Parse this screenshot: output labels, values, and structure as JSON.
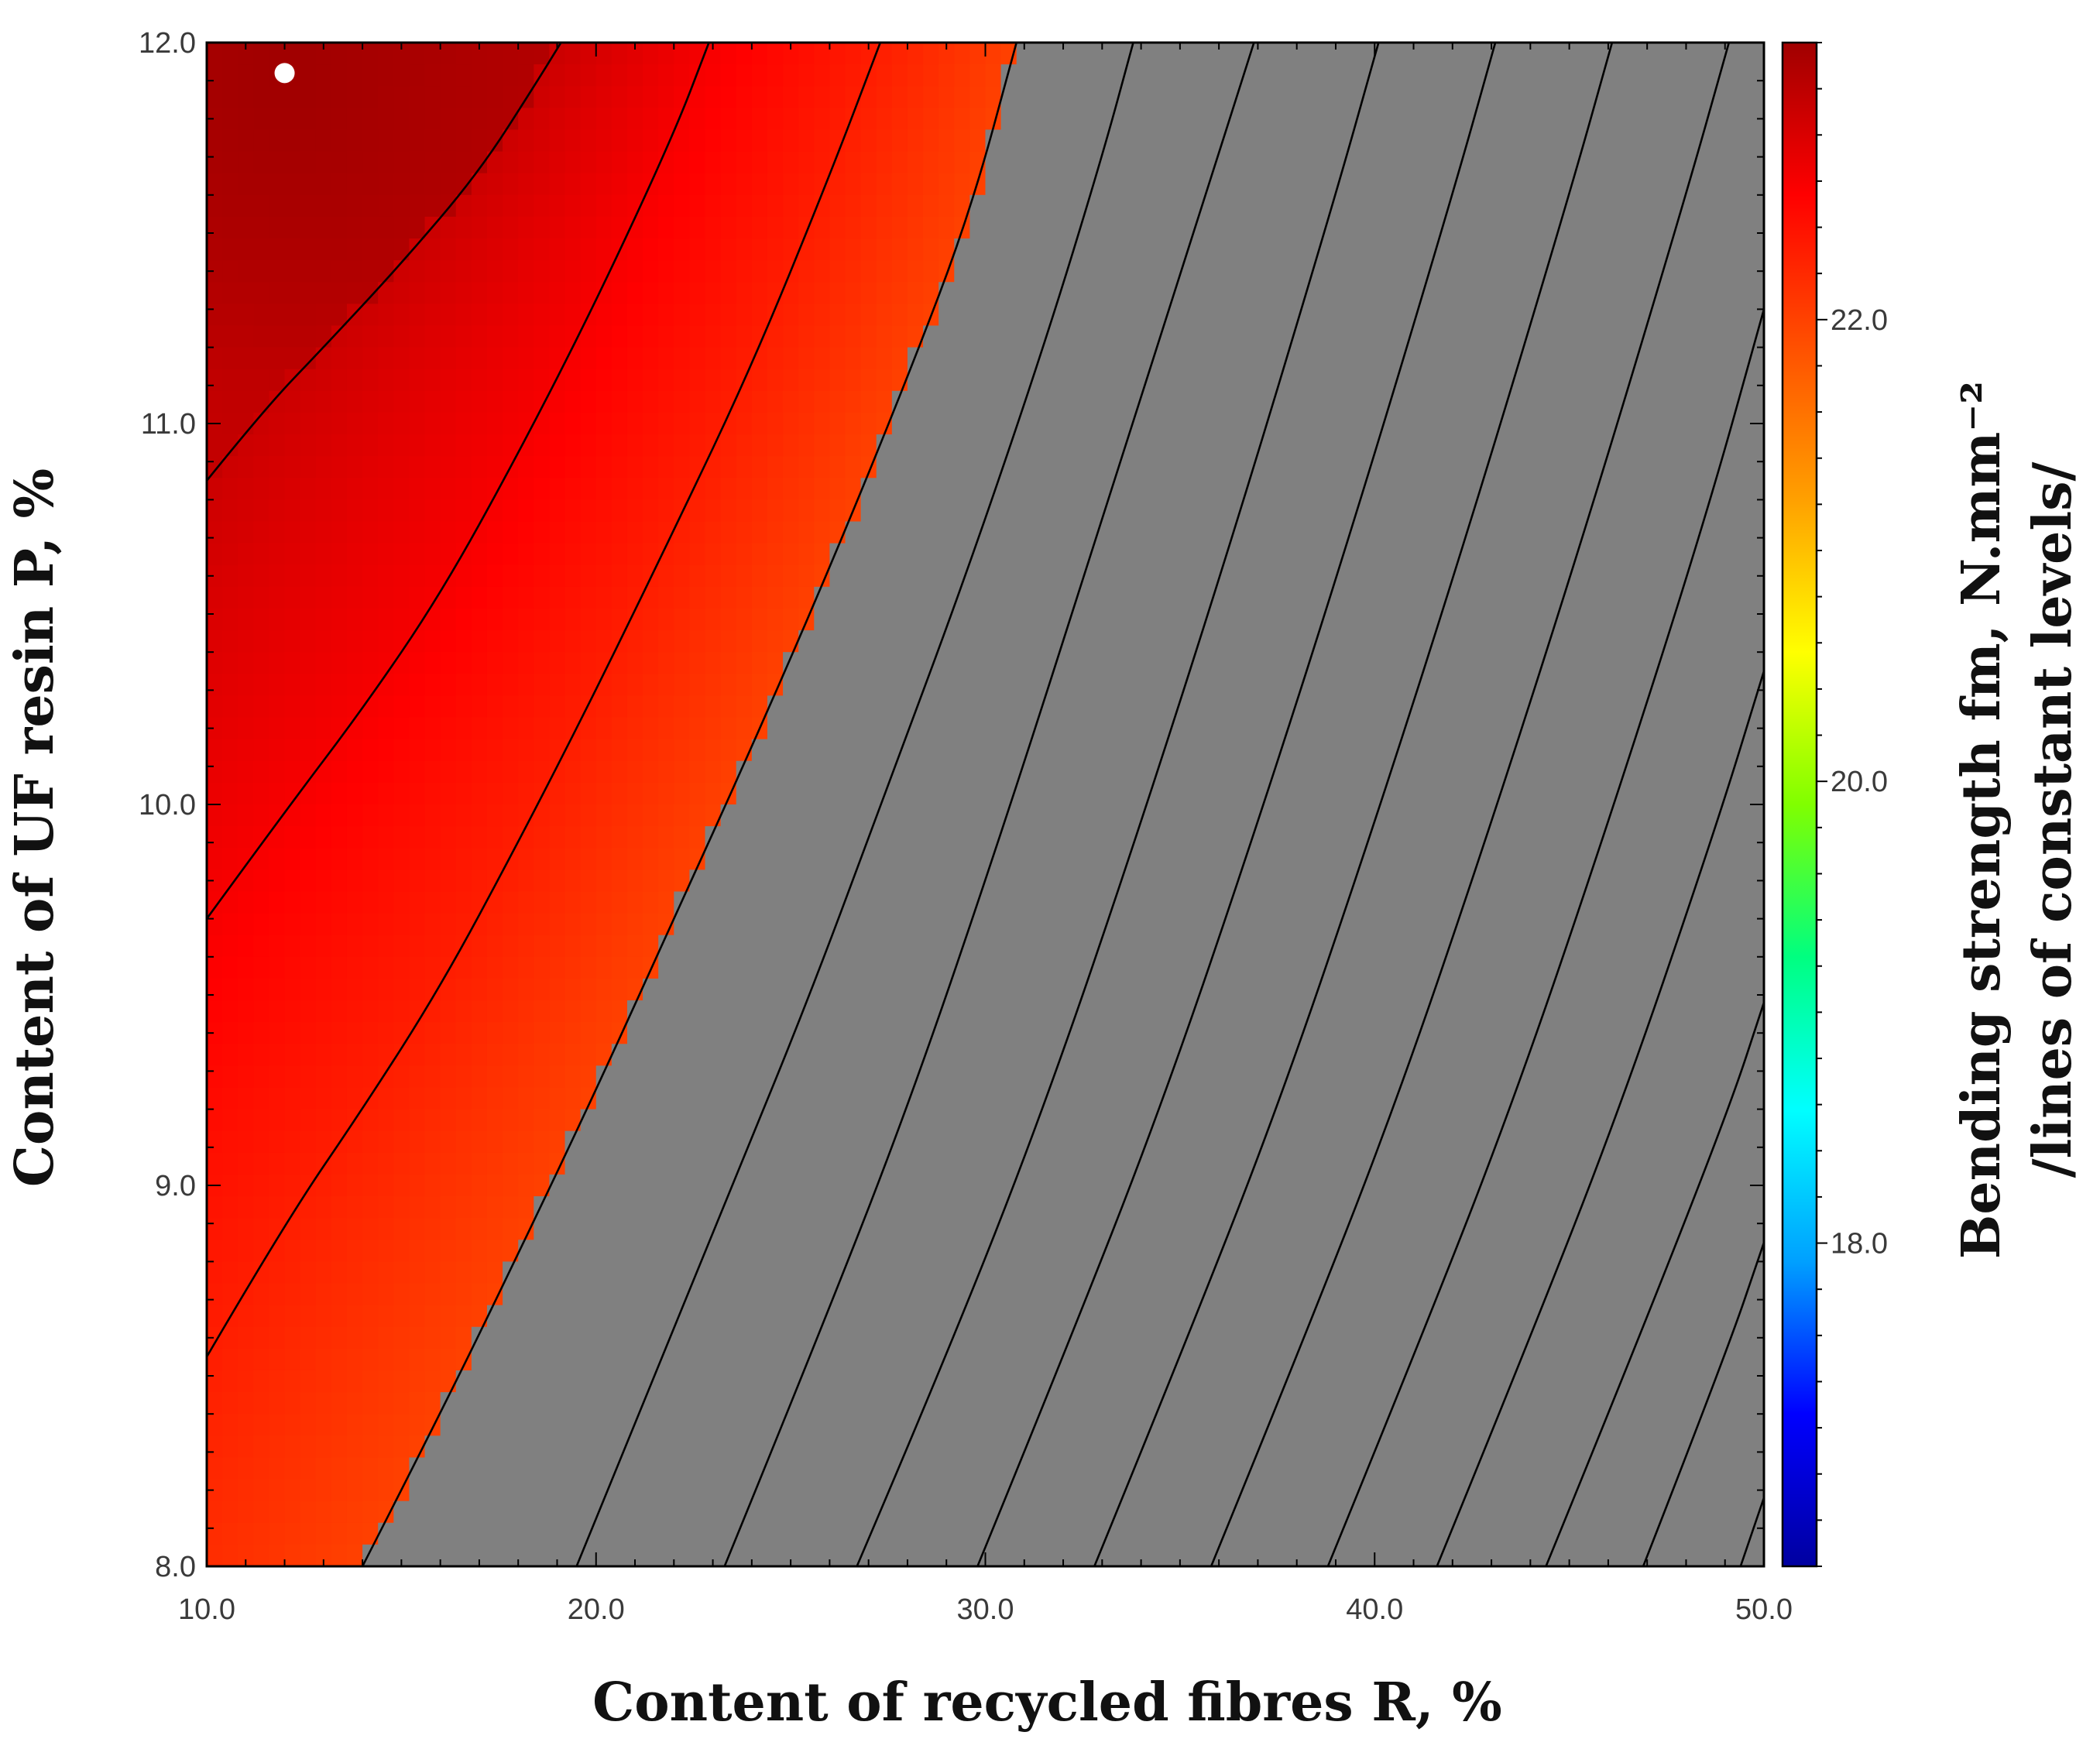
{
  "chart_data": {
    "type": "heatmap",
    "xlabel": "Content of recycled fibres R, %",
    "ylabel": "Content of UF resin P, %",
    "colorbar_label_line1": "Bending strength fm, N.mm⁻²",
    "colorbar_label_line2": "/lines of constant levels/",
    "xlim": [
      10.0,
      50.0
    ],
    "ylim": [
      8.0,
      12.0
    ],
    "x_ticks": [
      10.0,
      20.0,
      30.0,
      40.0,
      50.0
    ],
    "x_tick_labels": [
      "10.0",
      "20.0",
      "30.0",
      "40.0",
      "50.0"
    ],
    "y_ticks": [
      8.0,
      9.0,
      10.0,
      11.0,
      12.0
    ],
    "y_tick_labels": [
      "8.0",
      "9.0",
      "10.0",
      "11.0",
      "12.0"
    ],
    "colorbar_range": [
      16.6,
      23.2
    ],
    "colorbar_ticks": [
      18.0,
      20.0,
      22.0
    ],
    "colorbar_tick_labels": [
      "18.0",
      "20.0",
      "22.0"
    ],
    "colorscale": [
      "#0000a0",
      "#0000ff",
      "#00a0ff",
      "#00ffff",
      "#00ff80",
      "#80ff00",
      "#ffff00",
      "#ffa000",
      "#ff5000",
      "#ff0000",
      "#a00000"
    ],
    "out_of_range_color": "#808080",
    "out_of_range_threshold": 22.0,
    "maximum_point": {
      "x": 12.0,
      "y": 11.92
    },
    "contour_level_step": 0.3,
    "contour_lines": [
      {
        "level": 22.9,
        "points": [
          [
            10.0,
            10.85
          ],
          [
            11.5,
            11.04
          ],
          [
            13.0,
            11.2
          ],
          [
            15.0,
            11.42
          ],
          [
            17.0,
            11.66
          ],
          [
            18.5,
            11.9
          ],
          [
            19.1,
            12.0
          ]
        ]
      },
      {
        "level": 22.6,
        "points": [
          [
            10.0,
            9.7
          ],
          [
            12.0,
            9.98
          ],
          [
            14.0,
            10.25
          ],
          [
            16.0,
            10.55
          ],
          [
            18.0,
            10.92
          ],
          [
            20.0,
            11.32
          ],
          [
            22.0,
            11.76
          ],
          [
            22.9,
            12.0
          ]
        ]
      },
      {
        "level": 22.3,
        "points": [
          [
            10.0,
            8.55
          ],
          [
            12.0,
            8.9
          ],
          [
            14.0,
            9.2
          ],
          [
            16.0,
            9.52
          ],
          [
            18.0,
            9.9
          ],
          [
            20.0,
            10.3
          ],
          [
            22.0,
            10.72
          ],
          [
            24.0,
            11.15
          ],
          [
            26.0,
            11.65
          ],
          [
            27.3,
            12.0
          ]
        ]
      },
      {
        "level": 22.0,
        "points": [
          [
            14.0,
            8.0
          ],
          [
            16.0,
            8.4
          ],
          [
            18.0,
            8.82
          ],
          [
            20.0,
            9.25
          ],
          [
            22.0,
            9.7
          ],
          [
            24.0,
            10.15
          ],
          [
            26.0,
            10.62
          ],
          [
            28.0,
            11.12
          ],
          [
            29.6,
            11.55
          ],
          [
            30.8,
            12.0
          ]
        ]
      },
      {
        "level": 21.7,
        "points": [
          [
            19.5,
            8.0
          ],
          [
            21.5,
            8.5
          ],
          [
            23.5,
            9.0
          ],
          [
            25.5,
            9.5
          ],
          [
            27.5,
            10.05
          ],
          [
            29.5,
            10.6
          ],
          [
            31.5,
            11.2
          ],
          [
            33.0,
            11.7
          ],
          [
            33.8,
            12.0
          ]
        ]
      },
      {
        "level": 21.4,
        "points": [
          [
            23.3,
            8.0
          ],
          [
            25.5,
            8.55
          ],
          [
            28.0,
            9.2
          ],
          [
            30.5,
            9.95
          ],
          [
            33.0,
            10.75
          ],
          [
            35.5,
            11.55
          ],
          [
            36.9,
            12.0
          ]
        ]
      },
      {
        "level": 21.1,
        "points": [
          [
            26.7,
            8.0
          ],
          [
            29.0,
            8.55
          ],
          [
            31.5,
            9.2
          ],
          [
            34.0,
            9.95
          ],
          [
            36.5,
            10.75
          ],
          [
            39.0,
            11.6
          ],
          [
            40.1,
            12.0
          ]
        ]
      },
      {
        "level": 20.8,
        "points": [
          [
            29.8,
            8.0
          ],
          [
            32.0,
            8.55
          ],
          [
            34.5,
            9.2
          ],
          [
            37.0,
            9.95
          ],
          [
            39.5,
            10.75
          ],
          [
            42.0,
            11.6
          ],
          [
            43.1,
            12.0
          ]
        ]
      },
      {
        "level": 20.5,
        "points": [
          [
            32.8,
            8.0
          ],
          [
            35.0,
            8.55
          ],
          [
            37.5,
            9.2
          ],
          [
            40.0,
            9.95
          ],
          [
            42.5,
            10.75
          ],
          [
            45.0,
            11.6
          ],
          [
            46.1,
            12.0
          ]
        ]
      },
      {
        "level": 20.2,
        "points": [
          [
            35.8,
            8.0
          ],
          [
            38.0,
            8.55
          ],
          [
            40.5,
            9.2
          ],
          [
            43.0,
            9.95
          ],
          [
            45.5,
            10.75
          ],
          [
            48.0,
            11.6
          ],
          [
            49.1,
            12.0
          ]
        ]
      },
      {
        "level": 19.9,
        "points": [
          [
            38.8,
            8.0
          ],
          [
            41.0,
            8.55
          ],
          [
            43.5,
            9.2
          ],
          [
            46.0,
            9.95
          ],
          [
            48.5,
            10.75
          ],
          [
            50.0,
            11.3
          ]
        ]
      },
      {
        "level": 19.6,
        "points": [
          [
            41.6,
            8.0
          ],
          [
            43.8,
            8.55
          ],
          [
            46.3,
            9.2
          ],
          [
            48.8,
            9.95
          ],
          [
            50.0,
            10.35
          ]
        ]
      },
      {
        "level": 19.3,
        "points": [
          [
            44.4,
            8.0
          ],
          [
            46.6,
            8.55
          ],
          [
            49.1,
            9.2
          ],
          [
            50.0,
            9.48
          ]
        ]
      },
      {
        "level": 19.0,
        "points": [
          [
            46.9,
            8.0
          ],
          [
            49.0,
            8.55
          ],
          [
            50.0,
            8.85
          ]
        ]
      },
      {
        "level": 18.7,
        "points": [
          [
            49.4,
            8.0
          ],
          [
            50.0,
            8.18
          ]
        ]
      }
    ]
  }
}
